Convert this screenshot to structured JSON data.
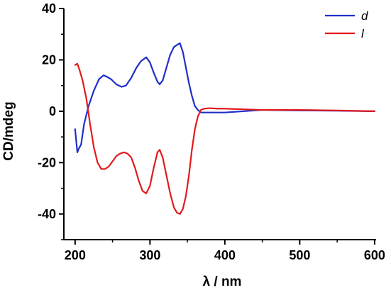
{
  "chart_data": {
    "type": "line",
    "title": "",
    "xlabel": "λ / nm",
    "ylabel": "CD/mdeg",
    "xlim": [
      185,
      602
    ],
    "ylim": [
      -50,
      40
    ],
    "x_ticks": [
      200,
      300,
      400,
      500,
      600
    ],
    "y_ticks": [
      -40,
      -20,
      0,
      20,
      40
    ],
    "x_tick_labels": [
      "200",
      "300",
      "400",
      "500",
      "600"
    ],
    "y_tick_labels": [
      "-40",
      "-20",
      "0",
      "20",
      "40"
    ],
    "grid": false,
    "legend_position": "top-right",
    "series": [
      {
        "name": "d",
        "color": "#1f2fc8",
        "x": [
          200,
          203,
          205,
          208,
          212,
          218,
          225,
          232,
          238,
          242,
          248,
          255,
          262,
          268,
          275,
          282,
          288,
          295,
          300,
          305,
          310,
          313,
          317,
          322,
          327,
          332,
          337,
          340,
          344,
          348,
          352,
          356,
          360,
          364,
          368,
          372,
          380,
          400,
          450,
          500,
          550,
          600
        ],
        "y": [
          -7,
          -16,
          -14.5,
          -13,
          -5,
          2,
          8,
          12.5,
          14,
          13.5,
          12.5,
          10.5,
          9.5,
          10,
          13,
          17,
          19.5,
          21,
          19,
          15,
          11.5,
          10.5,
          12,
          17,
          22,
          25,
          26,
          26.5,
          23,
          17,
          11,
          6,
          2,
          0.5,
          -0.5,
          -0.5,
          -0.5,
          -0.5,
          0.5,
          0.3,
          0.2,
          0
        ]
      },
      {
        "name": "l",
        "color": "#e31a1c",
        "x": [
          200,
          203,
          206,
          210,
          215,
          220,
          225,
          230,
          235,
          240,
          245,
          250,
          255,
          260,
          265,
          270,
          275,
          280,
          285,
          290,
          295,
          300,
          305,
          310,
          313,
          317,
          322,
          327,
          332,
          336,
          340,
          344,
          348,
          352,
          356,
          360,
          364,
          368,
          372,
          380,
          390,
          400,
          450,
          500,
          550,
          600
        ],
        "y": [
          18,
          18.5,
          16,
          12,
          5,
          -5,
          -14,
          -20,
          -22.5,
          -22.5,
          -21.5,
          -19.5,
          -17.5,
          -16.5,
          -16,
          -16.5,
          -18,
          -22,
          -27,
          -31,
          -32,
          -29,
          -22,
          -16,
          -15,
          -18,
          -25,
          -32,
          -37.5,
          -39.5,
          -40,
          -38,
          -33,
          -25,
          -15,
          -7,
          -2,
          0.5,
          1,
          1.2,
          1,
          1,
          0.5,
          0.5,
          0.3,
          0
        ]
      }
    ]
  }
}
